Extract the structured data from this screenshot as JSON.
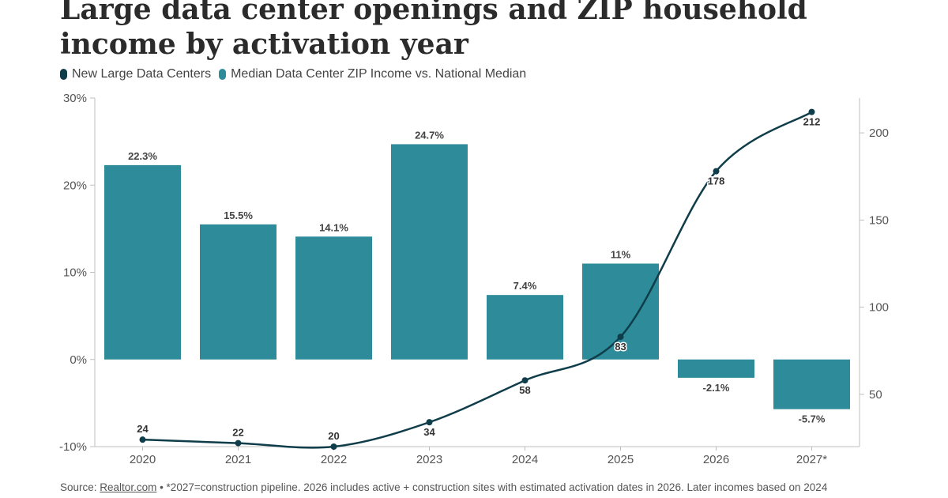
{
  "header": {
    "title": "Large data center openings and ZIP household income by activation year"
  },
  "legend": {
    "items": [
      {
        "label": "New Large Data Centers",
        "color": "#0f3d4a"
      },
      {
        "label": "Median Data Center ZIP Income vs. National Median",
        "color": "#2e8b9a"
      }
    ]
  },
  "footer": {
    "source_label": "Source:",
    "source_link": "Realtor.com",
    "note": " • *2027=construction pipeline. 2026 includes active + construction sites with estimated activation dates in 2026. Later incomes based on 2024"
  },
  "chart_data": {
    "type": "bar",
    "categories": [
      "2020",
      "2021",
      "2022",
      "2023",
      "2024",
      "2025",
      "2026",
      "2027*"
    ],
    "series": [
      {
        "name": "Median Data Center ZIP Income vs. National Median",
        "type": "bar",
        "axis": "left",
        "values": [
          22.3,
          15.5,
          14.1,
          24.7,
          7.4,
          11,
          -2.1,
          -5.7
        ],
        "labels": [
          "22.3%",
          "15.5%",
          "14.1%",
          "24.7%",
          "7.4%",
          "11%",
          "-2.1%",
          "-5.7%"
        ],
        "color": "#2e8b9a"
      },
      {
        "name": "New Large Data Centers",
        "type": "line",
        "axis": "right",
        "values": [
          24,
          22,
          20,
          34,
          58,
          83,
          178,
          212
        ],
        "labels": [
          "24",
          "22",
          "20",
          "34",
          "58",
          "83",
          "178",
          "212"
        ],
        "color": "#0f3d4a"
      }
    ],
    "left_axis": {
      "range": [
        -10,
        30
      ],
      "ticks": [
        -10,
        0,
        10,
        20,
        30
      ],
      "tick_labels": [
        "-10%",
        "0%",
        "10%",
        "20%",
        "30%"
      ]
    },
    "right_axis": {
      "range": [
        20,
        220
      ],
      "ticks": [
        50,
        100,
        150,
        200
      ],
      "tick_labels": [
        "50",
        "100",
        "150",
        "200"
      ]
    },
    "grid": false,
    "legend_position": "top-left"
  }
}
